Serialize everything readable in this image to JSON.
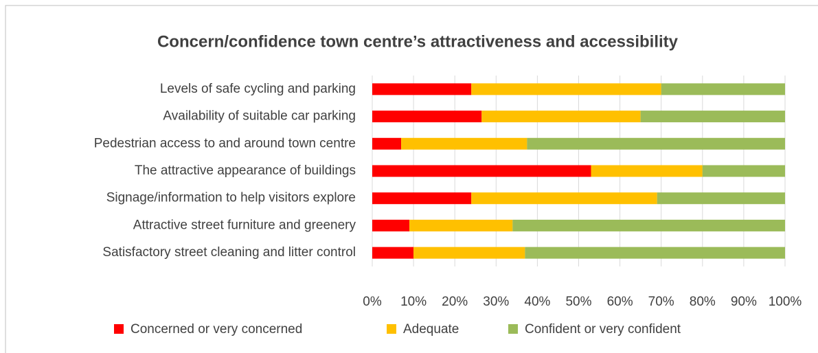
{
  "chart_data": {
    "type": "stacked_bar_horizontal",
    "title": "Concern/confidence  town centre’s attractiveness and accessibility",
    "categories": [
      "Levels of safe cycling and parking",
      "Availability of suitable car parking",
      "Pedestrian access to and around town centre",
      "The attractive appearance of buildings",
      "Signage/information to help visitors explore",
      "Attractive street furniture and greenery",
      "Satisfactory street cleaning and litter control"
    ],
    "series": [
      {
        "name": "Concerned or very concerned",
        "color": "#ff0000",
        "values": [
          24,
          26.5,
          7,
          53,
          24,
          9,
          10
        ]
      },
      {
        "name": "Adequate",
        "color": "#ffc000",
        "values": [
          46,
          38.5,
          30.5,
          27,
          45,
          25,
          27
        ]
      },
      {
        "name": "Confident or very confident",
        "color": "#9bbb59",
        "values": [
          30,
          35,
          62.5,
          20,
          31,
          66,
          63
        ]
      }
    ],
    "xlim": [
      0,
      100
    ],
    "xticks": [
      {
        "value": 0,
        "label": "0%"
      },
      {
        "value": 10,
        "label": "10%"
      },
      {
        "value": 20,
        "label": "20%"
      },
      {
        "value": 30,
        "label": "30%"
      },
      {
        "value": 40,
        "label": "40%"
      },
      {
        "value": 50,
        "label": "50%"
      },
      {
        "value": 60,
        "label": "60%"
      },
      {
        "value": 70,
        "label": "70%"
      },
      {
        "value": 80,
        "label": "80%"
      },
      {
        "value": 90,
        "label": "90%"
      },
      {
        "value": 100,
        "label": "100%"
      }
    ],
    "grid": true,
    "legend": "bottom"
  }
}
